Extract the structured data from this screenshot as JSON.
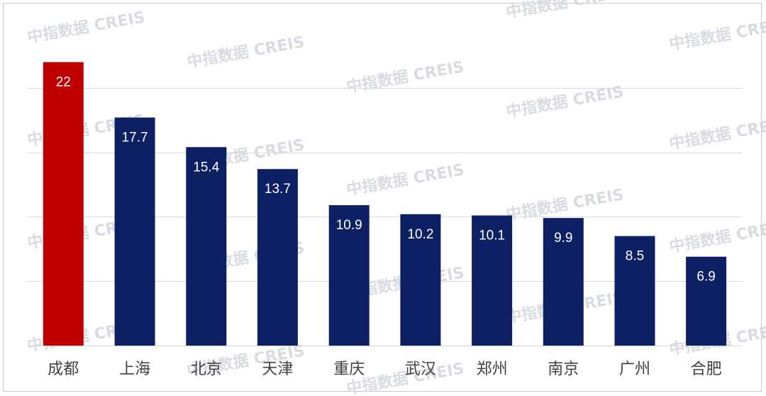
{
  "watermark": {
    "text": "中指数据 CREIS"
  },
  "chart_data": {
    "type": "bar",
    "title": "",
    "xlabel": "",
    "ylabel": "",
    "ylim": [
      0,
      24
    ],
    "grid": true,
    "categories": [
      "成都",
      "上海",
      "北京",
      "天津",
      "重庆",
      "武汉",
      "郑州",
      "南京",
      "广州",
      "合肥"
    ],
    "values": [
      22,
      17.7,
      15.4,
      13.7,
      10.9,
      10.2,
      10.1,
      9.9,
      8.5,
      6.9
    ],
    "data_labels": [
      "22",
      "17.7",
      "15.4",
      "13.7",
      "10.9",
      "10.2",
      "10.1",
      "9.9",
      "8.5",
      "6.9"
    ],
    "colors": {
      "highlight": "#c00000",
      "default": "#0d2063",
      "label": "#ffffff",
      "axis_label": "#404040",
      "gridline": "#d9d9d9"
    },
    "highlight_index": 0
  }
}
